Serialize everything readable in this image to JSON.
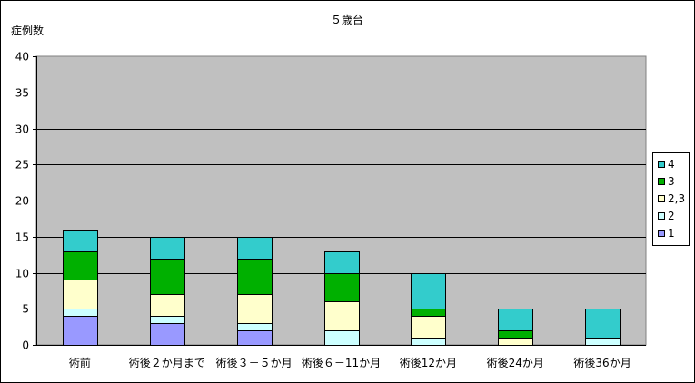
{
  "chart_data": {
    "type": "bar",
    "stacked": true,
    "title": "５歳台",
    "xlabel": "",
    "ylabel": "症例数",
    "ylim": [
      0,
      40
    ],
    "yticks": [
      0,
      5,
      10,
      15,
      20,
      25,
      30,
      35,
      40
    ],
    "grid": true,
    "legend": "right",
    "categories": [
      "術前",
      "術後２か月まで",
      "術後３－５か月",
      "術後６－11か月",
      "術後12か月",
      "術後24か月",
      "術後36か月"
    ],
    "series": [
      {
        "name": "1",
        "color": "#9999FF",
        "values": [
          4,
          3,
          2,
          0,
          0,
          0,
          0
        ]
      },
      {
        "name": "2",
        "color": "#CCFFFF",
        "values": [
          1,
          1,
          1,
          2,
          1,
          0,
          1
        ]
      },
      {
        "name": "2,3",
        "color": "#FFFFCC",
        "values": [
          4,
          3,
          4,
          4,
          3,
          1,
          0
        ]
      },
      {
        "name": "3",
        "color": "#00B000",
        "values": [
          4,
          5,
          5,
          4,
          1,
          1,
          0
        ]
      },
      {
        "name": "4",
        "color": "#33CCCC",
        "values": [
          3,
          3,
          3,
          3,
          5,
          3,
          4
        ]
      }
    ],
    "plot_background": "#C0C0C0"
  }
}
